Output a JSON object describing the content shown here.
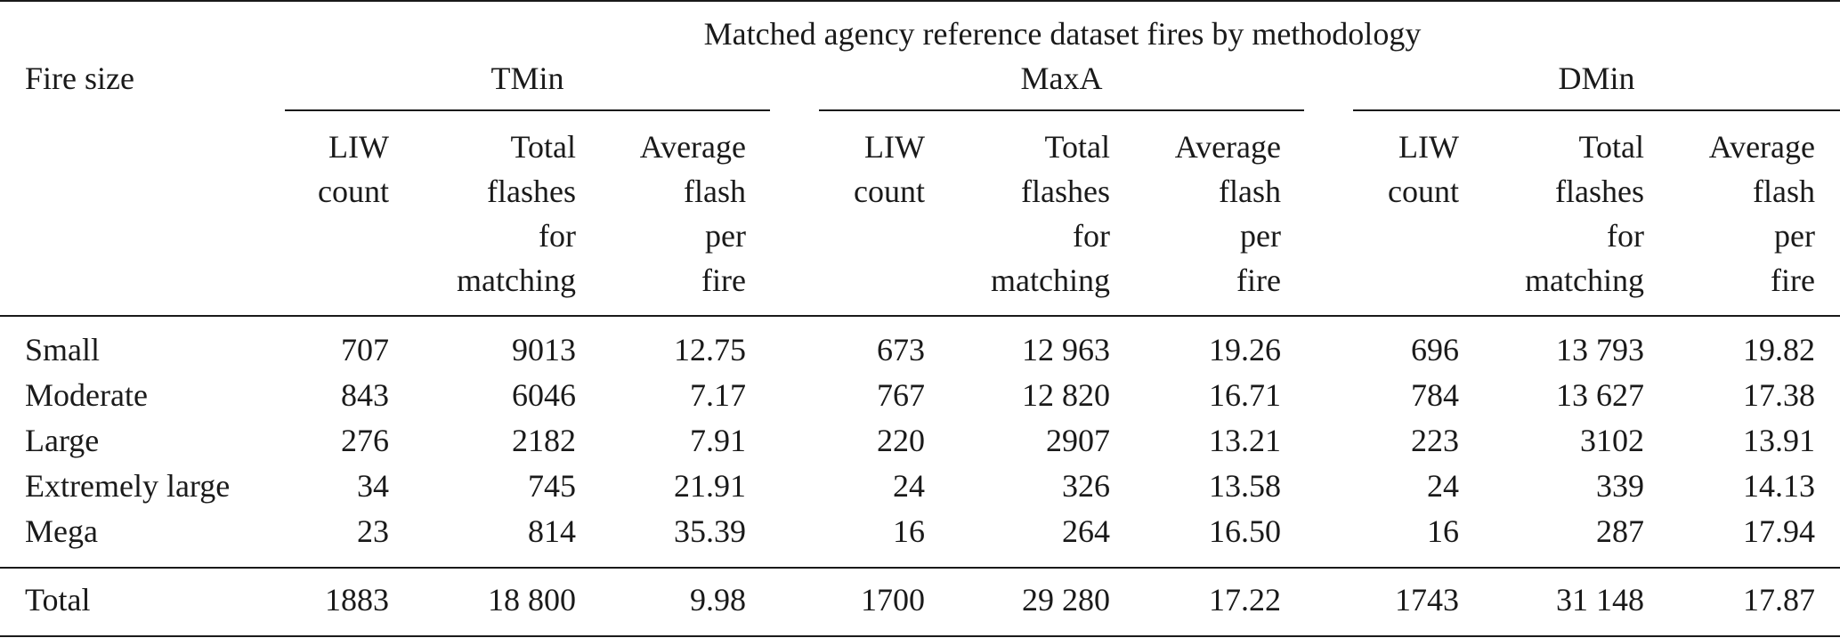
{
  "table": {
    "super_header": "Matched agency reference dataset fires by methodology",
    "row_header": "Fire size",
    "groups": [
      {
        "name": "TMin"
      },
      {
        "name": "MaxA"
      },
      {
        "name": "DMin"
      }
    ],
    "columns": [
      "LIW\ncount",
      "Total\nflashes\nfor\nmatching",
      "Average\nflash\nper\nfire"
    ],
    "rows": [
      {
        "label": "Small",
        "values": [
          "707",
          "9013",
          "12.75",
          "673",
          "12 963",
          "19.26",
          "696",
          "13 793",
          "19.82"
        ]
      },
      {
        "label": "Moderate",
        "values": [
          "843",
          "6046",
          "7.17",
          "767",
          "12 820",
          "16.71",
          "784",
          "13 627",
          "17.38"
        ]
      },
      {
        "label": "Large",
        "values": [
          "276",
          "2182",
          "7.91",
          "220",
          "2907",
          "13.21",
          "223",
          "3102",
          "13.91"
        ]
      },
      {
        "label": "Extremely large",
        "values": [
          "34",
          "745",
          "21.91",
          "24",
          "326",
          "13.58",
          "24",
          "339",
          "14.13"
        ]
      },
      {
        "label": "Mega",
        "values": [
          "23",
          "814",
          "35.39",
          "16",
          "264",
          "16.50",
          "16",
          "287",
          "17.94"
        ]
      }
    ],
    "total": {
      "label": "Total",
      "values": [
        "1883",
        "18 800",
        "9.98",
        "1700",
        "29 280",
        "17.22",
        "1743",
        "31 148",
        "17.87"
      ]
    }
  }
}
